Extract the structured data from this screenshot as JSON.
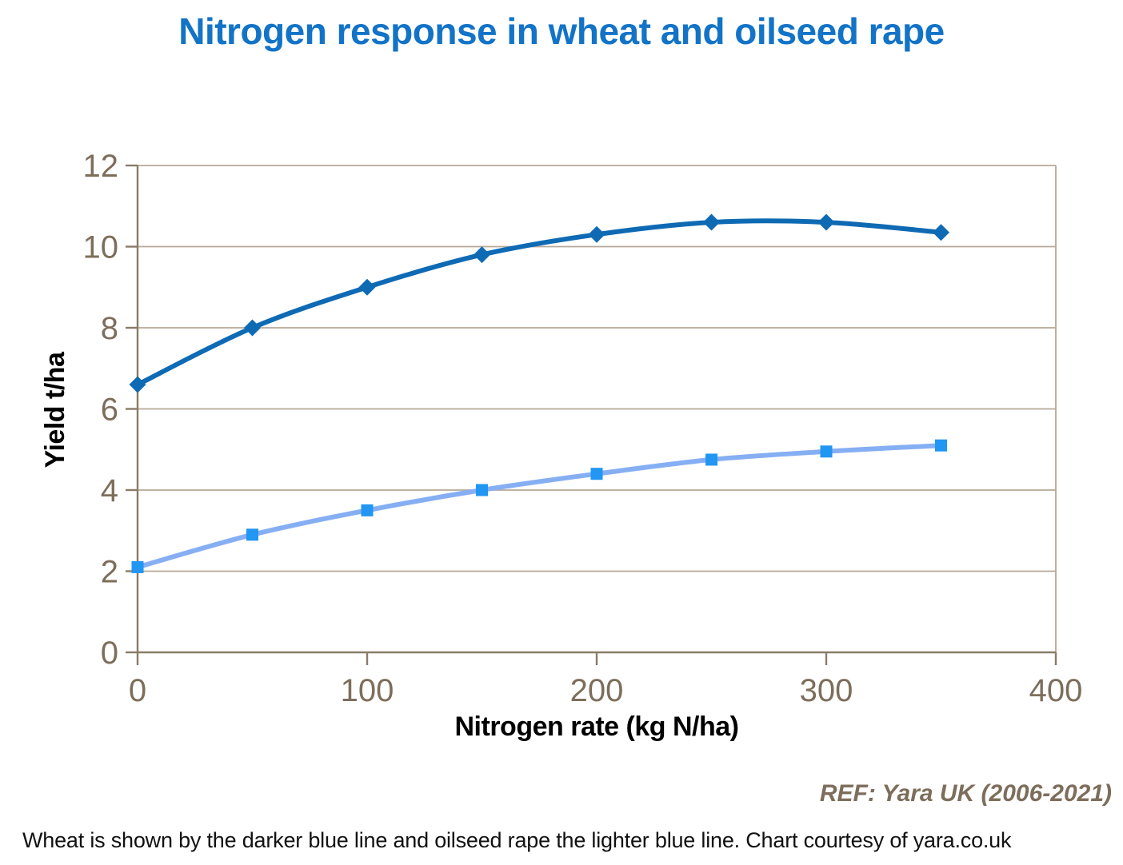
{
  "page": {
    "title": "Nitrogen response in wheat and oilseed rape",
    "ref_note": "REF: Yara UK (2006-2021)",
    "caption": "Wheat is shown by the darker blue line and oilseed rape the lighter blue line. Chart courtesy of yara.co.uk"
  },
  "colors": {
    "title_blue": "#1273c7",
    "axis_text_brown": "#7d6e5b",
    "axis_line": "#8a7c68",
    "gridline": "#b6a896",
    "wheat_blue": "#0f6ab4",
    "rape_line_blue": "#86aff3",
    "rape_marker_blue": "#2196f3",
    "caption_black": "#111111"
  },
  "chart_data": {
    "type": "line",
    "title": "Nitrogen response in wheat and oilseed rape",
    "xlabel": "Nitrogen rate (kg N/ha)",
    "ylabel": "Yield t/ha",
    "xlim": [
      0,
      400
    ],
    "ylim": [
      0,
      12
    ],
    "x_ticks": [
      0,
      100,
      200,
      300,
      400
    ],
    "y_ticks": [
      0,
      2,
      4,
      6,
      8,
      10,
      12
    ],
    "grid": "horizontal",
    "legend_position": "none",
    "annotation": "REF: Yara UK (2006-2021)",
    "x": [
      0,
      50,
      100,
      150,
      200,
      250,
      300,
      350
    ],
    "series": [
      {
        "name": "Wheat",
        "marker": "diamond",
        "color": "#0f6ab4",
        "marker_color": "#0f6ab4",
        "values": [
          6.6,
          8.0,
          9.0,
          9.8,
          10.3,
          10.6,
          10.6,
          10.35
        ]
      },
      {
        "name": "Oilseed rape",
        "marker": "square",
        "color": "#86aff3",
        "marker_color": "#2196f3",
        "values": [
          2.1,
          2.9,
          3.5,
          4.0,
          4.4,
          4.75,
          4.95,
          5.1
        ]
      }
    ]
  }
}
